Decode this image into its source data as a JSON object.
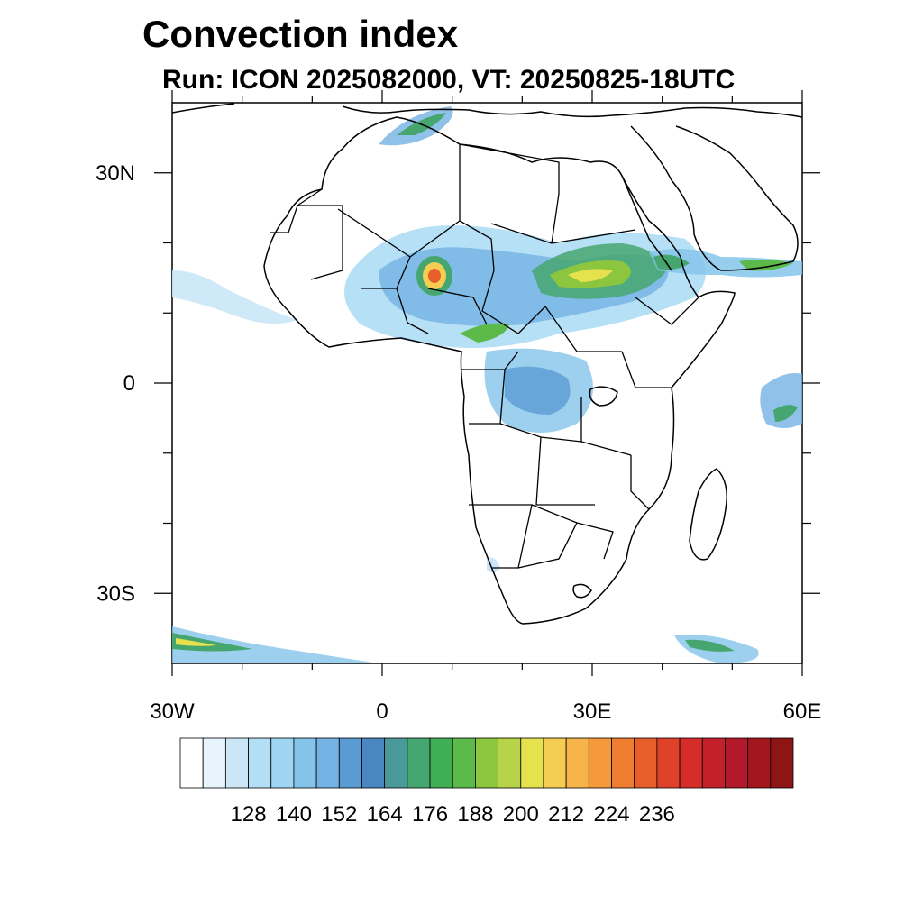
{
  "title": "Convection index",
  "subtitle": "Run: ICON 2025082000,  VT: 20250825-18UTC",
  "map": {
    "extent": {
      "lon": [
        -30,
        60
      ],
      "lat": [
        -40,
        40
      ]
    },
    "lat_ticks": [
      {
        "value": 30,
        "label": "30N"
      },
      {
        "value": 0,
        "label": "0"
      },
      {
        "value": -30,
        "label": "30S"
      }
    ],
    "lon_ticks": [
      {
        "value": -30,
        "label": "30W"
      },
      {
        "value": 0,
        "label": "0"
      },
      {
        "value": 30,
        "label": "30E"
      },
      {
        "value": 60,
        "label": "60E"
      }
    ],
    "minor_step_deg": 10
  },
  "colorbar": {
    "colors": [
      "#ffffff",
      "#e8f4fb",
      "#cbe7f7",
      "#b4def5",
      "#9dd5f2",
      "#85c4ea",
      "#74b2e3",
      "#5b9bd4",
      "#4a86c0",
      "#4a9a9b",
      "#46a66f",
      "#3fae55",
      "#5cba4a",
      "#8cc63f",
      "#b7d347",
      "#e6e24e",
      "#f4cd52",
      "#f7b44a",
      "#f59a3c",
      "#ef7d30",
      "#e75e2a",
      "#df4228",
      "#d52d2a",
      "#c3202b",
      "#b3192a",
      "#a4161e",
      "#8e1416"
    ],
    "labels": [
      "128",
      "140",
      "152",
      "164",
      "176",
      "188",
      "200",
      "212",
      "224",
      "236"
    ]
  }
}
